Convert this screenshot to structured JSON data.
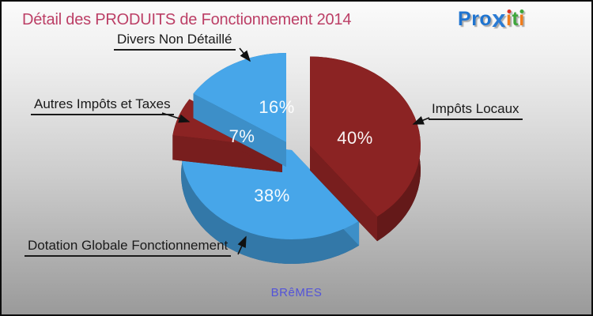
{
  "title": "Détail des PRODUITS de Fonctionnement 2014",
  "title_color": "#bc3f66",
  "logo": {
    "name": "Proxiti",
    "letters": [
      {
        "ch": "P",
        "color": "#1f74d0"
      },
      {
        "ch": "r",
        "color": "#1f74d0"
      },
      {
        "ch": "o",
        "color": "#1f74d0"
      },
      {
        "ch": "x",
        "color": "#2a7bd4",
        "big": true
      },
      {
        "ch": "ı",
        "color": "#f07c1c",
        "dot": "#dc3127"
      },
      {
        "ch": "t",
        "color": "#3ea63c"
      },
      {
        "ch": "ı",
        "color": "#f07c1c",
        "dot": "#3ea63c"
      }
    ]
  },
  "chart_data": {
    "type": "pie",
    "title": "Détail des PRODUITS de Fonctionnement 2014",
    "unit": "%",
    "style": "3d-exploded",
    "start_angle_deg": 90,
    "direction": "clockwise",
    "slices": [
      {
        "label": "Impôts Locaux",
        "value": 40,
        "color": "#8b2323"
      },
      {
        "label": "Dotation Globale Fonctionnement",
        "value": 38,
        "color": "#47a6e9"
      },
      {
        "label": "Autres Impôts et Taxes",
        "value": 7,
        "color": "#8b2323"
      },
      {
        "label": "Divers Non Détaillé",
        "value": 16,
        "color": "#47a6e9"
      }
    ],
    "percent_labels": [
      "40%",
      "38%",
      "7%",
      "16%"
    ],
    "source_label": "BRêMES"
  }
}
